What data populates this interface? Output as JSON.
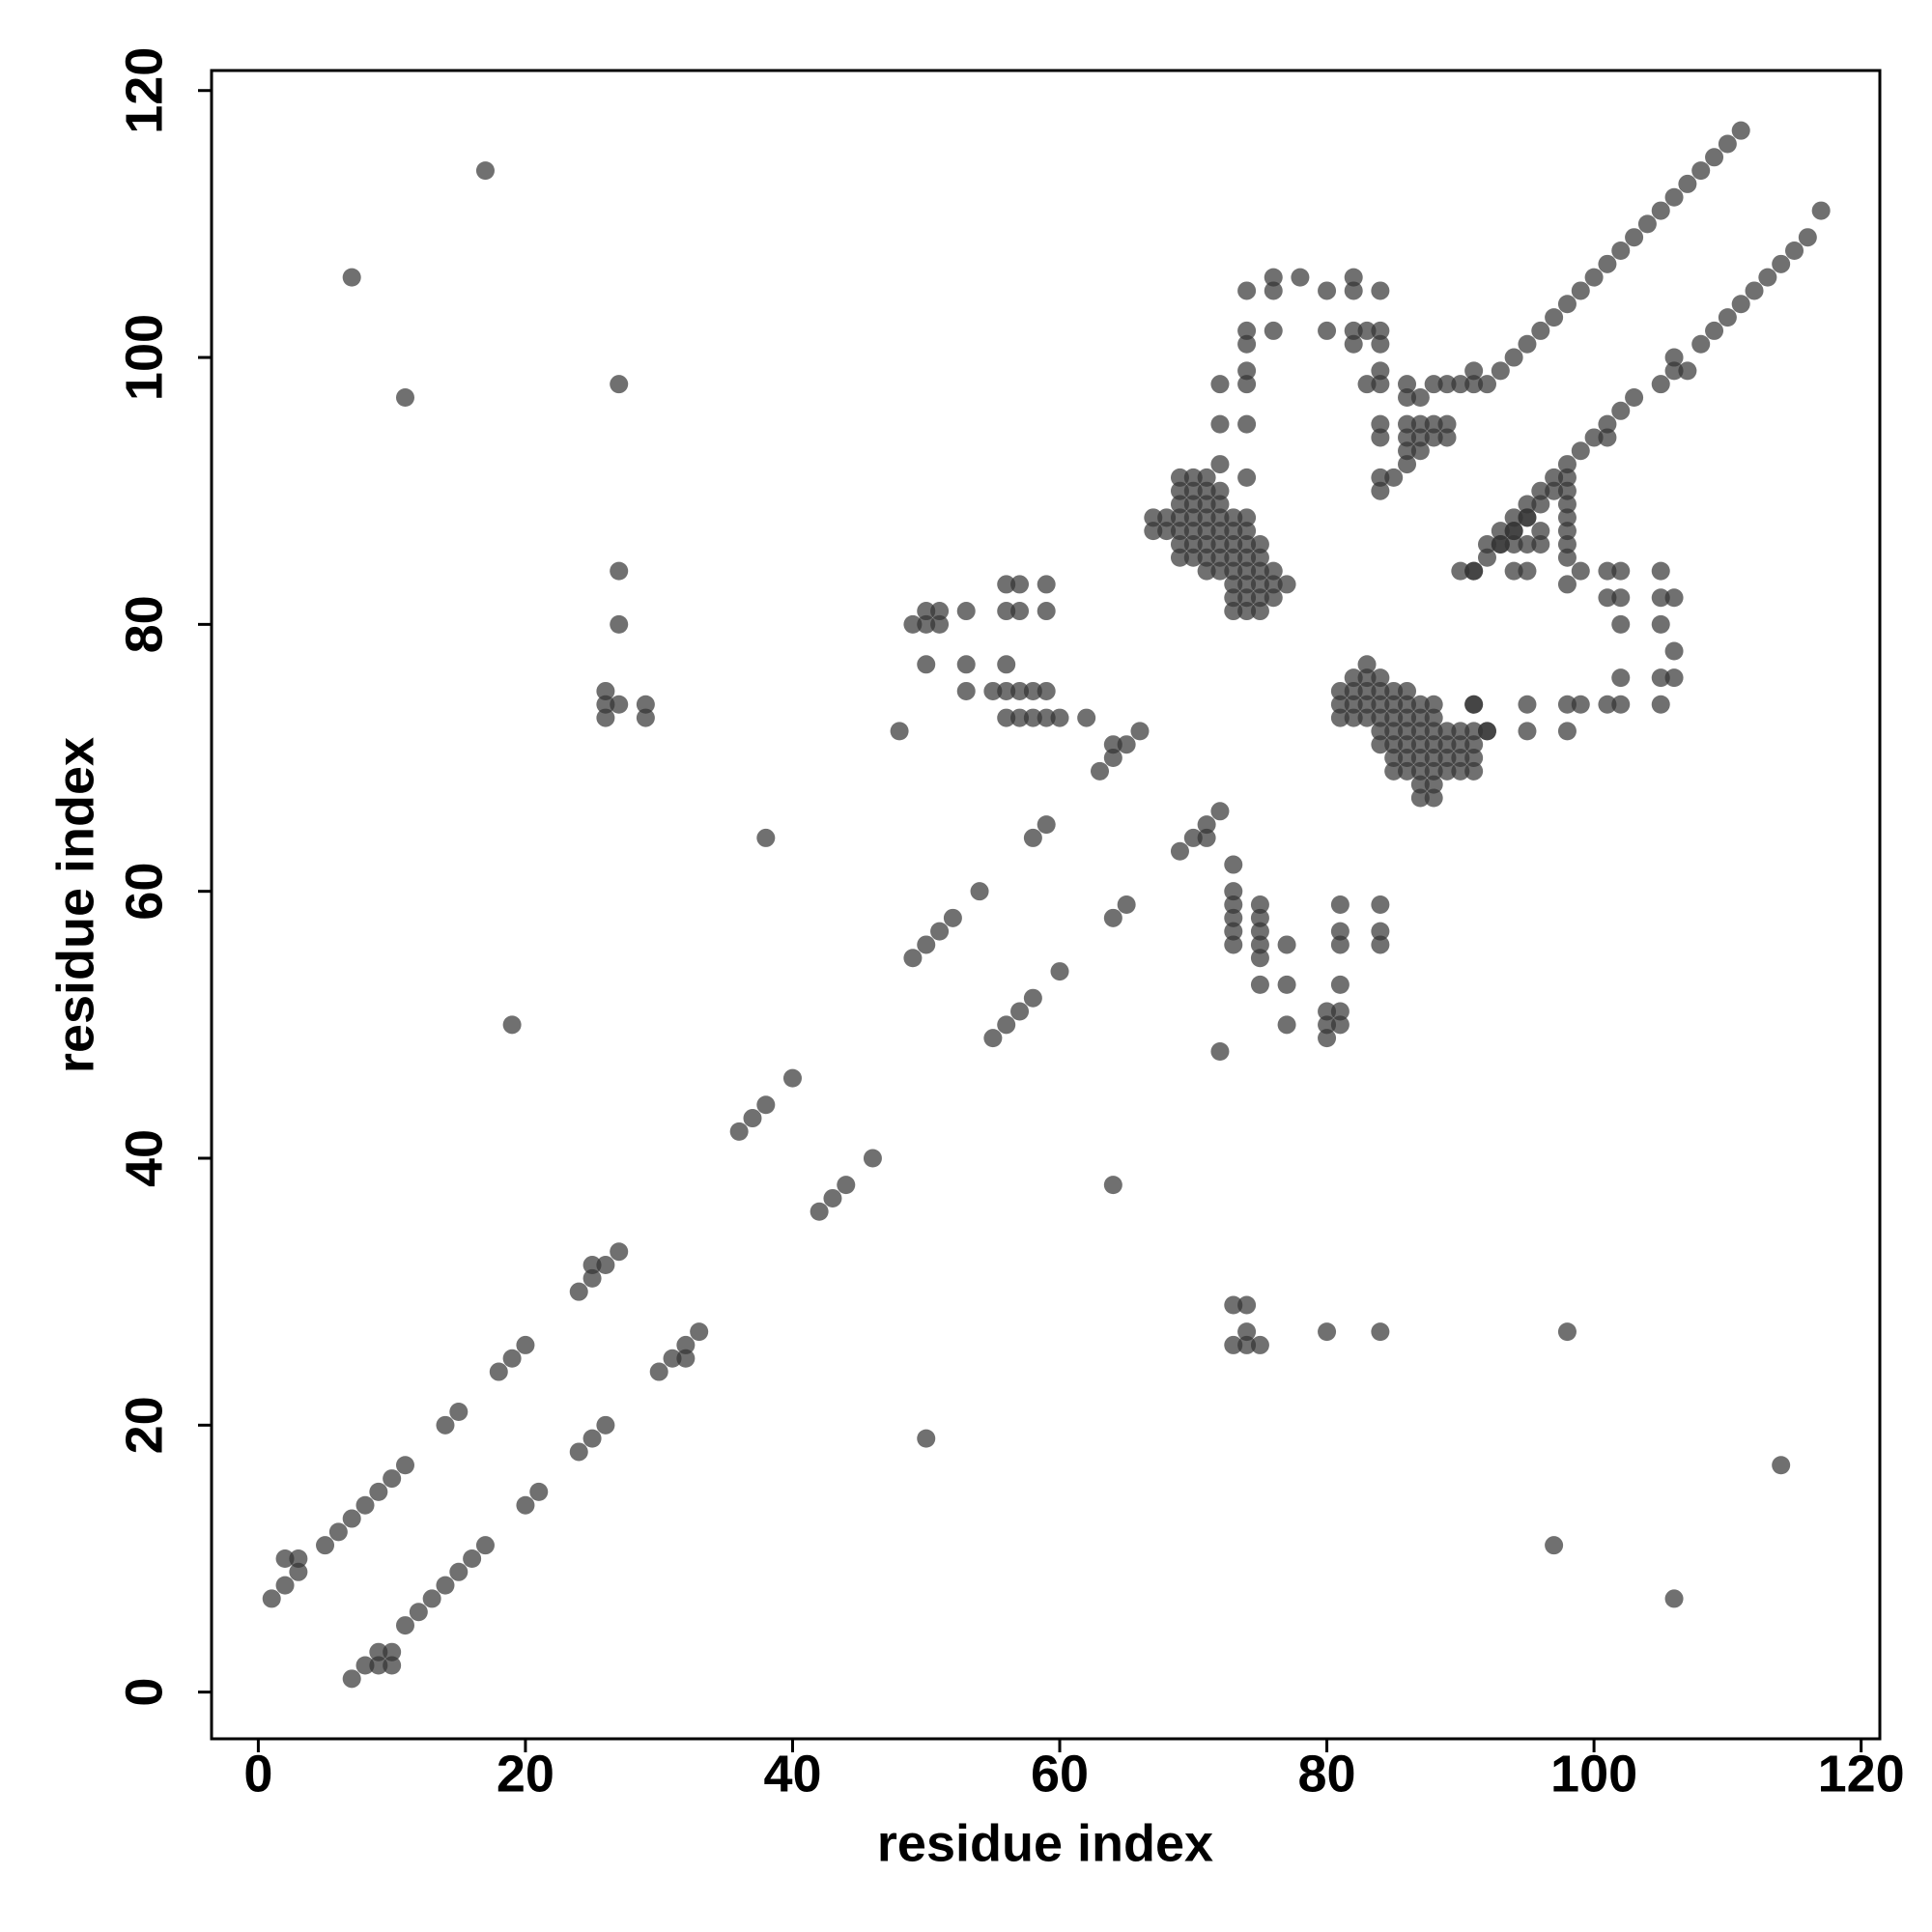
{
  "chart_data": {
    "type": "scatter",
    "x_label": "residue index",
    "y_label": "residue index",
    "xlim": [
      -3.5,
      121.4
    ],
    "ylim": [
      -3.5,
      121.5
    ],
    "xticks": [
      0,
      20,
      40,
      60,
      80,
      100,
      120
    ],
    "yticks": [
      0,
      20,
      40,
      60,
      80,
      100,
      120
    ],
    "color": "#333333",
    "alpha": 0.7,
    "x": [
      1,
      2,
      2,
      3,
      3,
      5,
      6,
      7,
      8,
      9,
      10,
      11,
      14,
      15,
      18,
      19,
      20,
      24,
      25,
      25,
      26,
      27,
      36,
      37,
      38,
      40,
      49,
      50,
      51,
      52,
      54,
      58,
      59,
      69,
      70,
      71,
      71,
      72,
      7,
      8,
      9,
      9,
      10,
      10,
      11,
      12,
      13,
      14,
      15,
      16,
      17,
      20,
      21,
      24,
      25,
      26,
      30,
      31,
      32,
      32,
      33,
      42,
      43,
      44,
      46,
      55,
      56,
      57,
      58,
      60,
      64,
      65,
      63,
      64,
      64,
      65,
      66,
      91,
      92,
      93,
      94,
      95,
      96,
      97,
      98,
      99,
      100,
      101,
      101,
      102,
      103,
      105,
      106,
      107,
      106,
      108,
      109,
      110,
      111,
      112,
      113,
      114,
      115,
      116,
      117,
      93,
      94,
      95,
      96,
      97,
      98,
      99,
      100,
      101,
      102,
      103,
      104,
      105,
      106,
      107,
      108,
      109,
      110,
      111,
      7,
      11,
      17,
      19,
      27,
      27,
      27,
      26,
      26,
      26,
      27,
      29,
      29,
      38,
      48,
      50,
      64,
      97,
      98,
      106,
      114,
      80,
      84,
      73,
      73,
      74,
      74,
      74,
      75,
      49,
      50,
      50,
      51,
      51,
      53,
      50,
      53,
      53,
      55,
      56,
      57,
      58,
      59,
      56,
      57,
      59,
      56,
      57,
      59,
      56,
      56,
      57,
      58,
      59,
      60,
      62,
      72,
      73,
      73,
      73,
      73,
      73,
      73,
      75,
      75,
      75,
      75,
      75,
      75,
      77,
      77,
      77,
      80,
      80,
      80,
      81,
      81,
      81,
      81,
      81,
      81,
      84,
      84,
      84,
      67,
      67,
      68,
      68,
      69,
      69,
      69,
      69,
      69,
      69,
      69,
      70,
      70,
      70,
      70,
      70,
      70,
      70,
      71,
      71,
      71,
      71,
      71,
      71,
      71,
      71,
      72,
      72,
      72,
      72,
      72,
      72,
      72,
      72,
      73,
      73,
      73,
      73,
      73,
      73,
      73,
      73,
      74,
      74,
      74,
      74,
      74,
      74,
      74,
      74,
      74,
      75,
      75,
      75,
      75,
      75,
      75,
      76,
      76,
      76,
      77,
      87,
      88,
      87,
      88,
      85,
      86,
      87,
      88,
      89,
      90,
      91,
      85,
      86,
      87,
      88,
      89,
      90,
      91,
      84,
      85,
      86,
      87,
      88,
      89,
      90,
      91,
      84,
      85,
      86,
      87,
      88,
      89,
      90,
      92,
      81,
      82,
      83,
      84,
      85,
      86,
      87,
      88,
      81,
      82,
      83,
      84,
      85,
      86,
      87,
      88,
      91,
      81,
      82,
      83,
      84,
      85,
      86,
      82,
      83,
      84,
      83,
      72,
      72,
      74,
      74,
      74,
      74,
      74,
      74,
      76,
      76,
      76,
      78,
      80,
      80,
      82,
      82,
      84,
      82,
      82,
      83,
      84,
      84,
      84,
      84,
      83,
      86,
      88,
      89,
      90,
      91,
      91,
      92,
      84,
      84,
      86,
      86,
      86,
      87,
      87,
      88,
      89,
      84,
      84,
      85,
      86,
      87,
      88,
      89,
      86,
      87,
      91,
      91,
      92,
      95,
      95,
      98,
      99,
      98,
      102,
      101,
      105,
      105,
      106,
      106,
      105,
      106,
      105,
      105,
      102,
      101,
      102,
      101,
      102,
      102,
      99,
      98,
      98,
      98,
      98,
      98,
      98,
      98,
      98,
      96,
      96,
      95,
      94,
      94,
      95,
      94,
      94,
      95,
      95,
      93,
      93,
      92,
      90,
      91,
      96,
      97
    ],
    "values": [
      7,
      8,
      10,
      9,
      10,
      11,
      12,
      13,
      14,
      15,
      16,
      17,
      20,
      21,
      24,
      25,
      26,
      30,
      31,
      32,
      32,
      33,
      42,
      43,
      44,
      46,
      55,
      56,
      57,
      58,
      60,
      64,
      65,
      63,
      64,
      64,
      65,
      66,
      1,
      2,
      2,
      3,
      2,
      3,
      5,
      6,
      7,
      8,
      9,
      10,
      11,
      14,
      15,
      18,
      19,
      20,
      24,
      25,
      25,
      26,
      27,
      36,
      37,
      38,
      40,
      49,
      50,
      51,
      52,
      54,
      58,
      59,
      69,
      70,
      71,
      71,
      72,
      84,
      85,
      86,
      87,
      88,
      89,
      90,
      91,
      93,
      94,
      94,
      95,
      96,
      97,
      98,
      99,
      99,
      100,
      101,
      102,
      103,
      104,
      105,
      106,
      107,
      108,
      109,
      111,
      99,
      100,
      101,
      102,
      103,
      104,
      105,
      106,
      107,
      108,
      109,
      110,
      111,
      112,
      113,
      114,
      115,
      116,
      117,
      106,
      97,
      114,
      50,
      98,
      84,
      80,
      75,
      74,
      73,
      74,
      74,
      73,
      64,
      72,
      19,
      38,
      11,
      27,
      7,
      17,
      27,
      27,
      26,
      29,
      29,
      27,
      26,
      26,
      80,
      80,
      81,
      80,
      81,
      81,
      77,
      77,
      75,
      75,
      75,
      75,
      75,
      75,
      83,
      83,
      83,
      81,
      81,
      81,
      77,
      73,
      73,
      73,
      73,
      73,
      73,
      48,
      62,
      60,
      59,
      58,
      57,
      56,
      59,
      58,
      57,
      56,
      55,
      53,
      56,
      53,
      50,
      51,
      50,
      49,
      51,
      50,
      53,
      56,
      57,
      59,
      59,
      57,
      56,
      87,
      88,
      87,
      88,
      85,
      86,
      87,
      88,
      89,
      90,
      91,
      85,
      86,
      87,
      88,
      89,
      90,
      91,
      84,
      85,
      86,
      87,
      88,
      89,
      90,
      91,
      84,
      85,
      86,
      87,
      88,
      89,
      90,
      92,
      81,
      82,
      83,
      84,
      85,
      86,
      87,
      88,
      81,
      82,
      83,
      84,
      85,
      86,
      87,
      88,
      91,
      81,
      82,
      83,
      84,
      85,
      86,
      82,
      83,
      84,
      83,
      67,
      67,
      68,
      68,
      69,
      69,
      69,
      69,
      69,
      69,
      69,
      70,
      70,
      70,
      70,
      70,
      70,
      70,
      71,
      71,
      71,
      71,
      71,
      71,
      71,
      71,
      72,
      72,
      72,
      72,
      72,
      72,
      72,
      72,
      73,
      73,
      73,
      73,
      73,
      73,
      73,
      73,
      74,
      74,
      74,
      74,
      74,
      74,
      74,
      74,
      74,
      75,
      75,
      75,
      75,
      75,
      75,
      76,
      76,
      76,
      77,
      95,
      98,
      95,
      98,
      99,
      101,
      102,
      105,
      102,
      105,
      106,
      106,
      105,
      102,
      106,
      105,
      105,
      101,
      102,
      102,
      102,
      101,
      99,
      98,
      98,
      98,
      98,
      98,
      98,
      98,
      99,
      98,
      95,
      94,
      95,
      94,
      93,
      95,
      94,
      95,
      95,
      91,
      90,
      91,
      92,
      93,
      94,
      94,
      97,
      97,
      74,
      72,
      72,
      74,
      72,
      74,
      74,
      72,
      74,
      74,
      74,
      76,
      76,
      78,
      80,
      82,
      82,
      84,
      84,
      84,
      82,
      82,
      80,
      76,
      84,
      83,
      85,
      86,
      87,
      88,
      89,
      90,
      92,
      86,
      87,
      84,
      84,
      86,
      86,
      87,
      88,
      88,
      89,
      86,
      87,
      86,
      84,
      84,
      90,
      91
    ]
  }
}
